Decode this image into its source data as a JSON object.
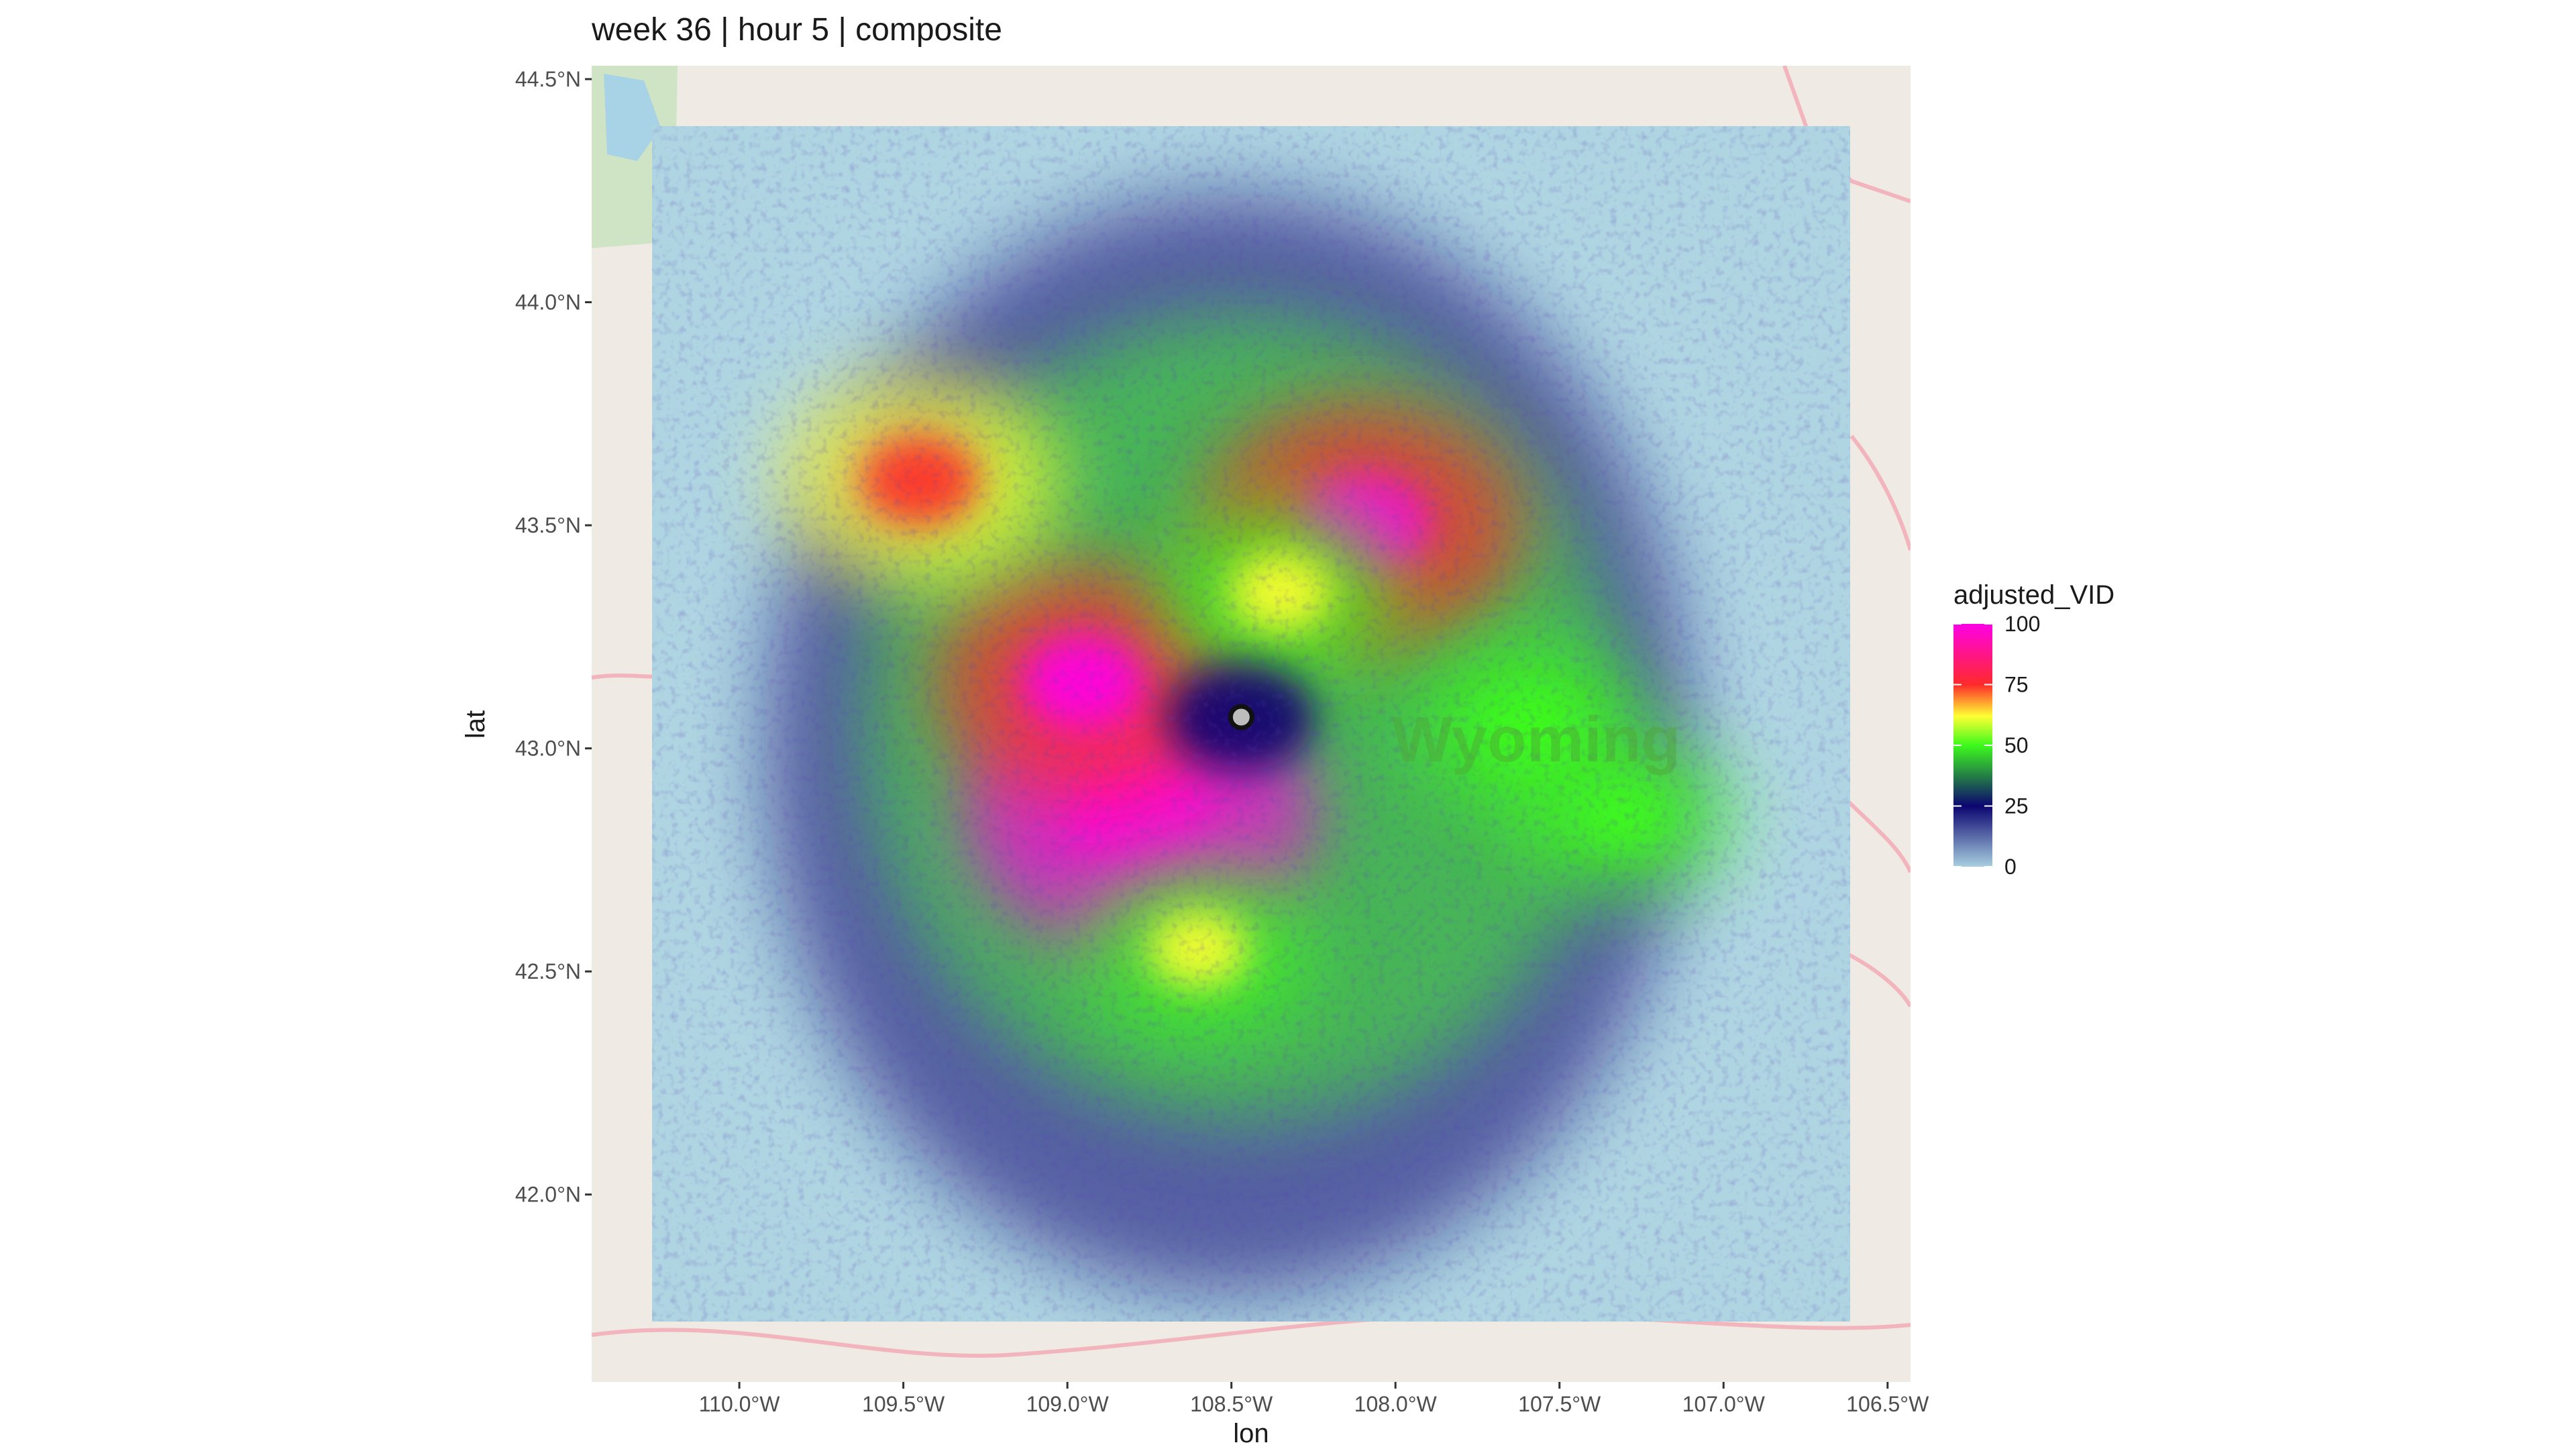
{
  "chart_data": {
    "type": "heatmap",
    "title": "week 36 | hour 5 | composite",
    "xlabel": "lon",
    "ylabel": "lat",
    "xlim": [
      -110.45,
      -106.43
    ],
    "ylim": [
      41.58,
      44.53
    ],
    "x_ticks": [
      {
        "value": -110.0,
        "label": "110.0°W"
      },
      {
        "value": -109.5,
        "label": "109.5°W"
      },
      {
        "value": -109.0,
        "label": "109.0°W"
      },
      {
        "value": -108.5,
        "label": "108.5°W"
      },
      {
        "value": -108.0,
        "label": "108.0°W"
      },
      {
        "value": -107.5,
        "label": "107.5°W"
      },
      {
        "value": -107.0,
        "label": "107.0°W"
      },
      {
        "value": -106.5,
        "label": "106.5°W"
      }
    ],
    "y_ticks": [
      {
        "value": 42.0,
        "label": "42.0°N"
      },
      {
        "value": 42.5,
        "label": "42.5°N"
      },
      {
        "value": 43.0,
        "label": "43.0°N"
      },
      {
        "value": 43.5,
        "label": "43.5°N"
      },
      {
        "value": 44.0,
        "label": "44.0°N"
      },
      {
        "value": 44.5,
        "label": "44.5°N"
      }
    ],
    "raster_extent": {
      "lon": [
        -110.26,
        -106.65
      ],
      "lat": [
        41.72,
        44.39
      ]
    },
    "radar_site": {
      "lon": -108.47,
      "lat": 43.07
    },
    "legend": {
      "title": "adjusted_VID",
      "position": "right",
      "range": [
        0,
        100
      ],
      "labels": [
        {
          "value": 0,
          "label": "0"
        },
        {
          "value": 25,
          "label": "25"
        },
        {
          "value": 50,
          "label": "50"
        },
        {
          "value": 75,
          "label": "75"
        },
        {
          "value": 100,
          "label": "100"
        }
      ],
      "stops": [
        {
          "value": 0,
          "color": "#a8cfe0"
        },
        {
          "value": 25,
          "color": "#0b0570"
        },
        {
          "value": 50,
          "color": "#3dfa1c"
        },
        {
          "value": 62,
          "color": "#ffff33"
        },
        {
          "value": 75,
          "color": "#ff2a2a"
        },
        {
          "value": 100,
          "color": "#ff00e6"
        }
      ]
    },
    "basemap_label": "Wyoming",
    "hotspots": [
      {
        "lon": -108.78,
        "lat": 42.85,
        "value": 100
      },
      {
        "lon": -108.95,
        "lat": 43.15,
        "value": 80
      },
      {
        "lon": -109.45,
        "lat": 43.6,
        "value": 72
      },
      {
        "lon": -108.1,
        "lat": 43.5,
        "value": 88
      },
      {
        "lon": -108.35,
        "lat": 43.35,
        "value": 55
      },
      {
        "lon": -107.6,
        "lat": 43.05,
        "value": 50
      },
      {
        "lon": -108.6,
        "lat": 42.55,
        "value": 52
      },
      {
        "lon": -107.3,
        "lat": 42.85,
        "value": 45
      }
    ]
  },
  "colors": {
    "panel_bg": "#efebe4",
    "raster_bg": "#afd5e2",
    "roads": "#f2a7b4",
    "water": "#a8d3e6",
    "forest": "#cfe3c5"
  }
}
